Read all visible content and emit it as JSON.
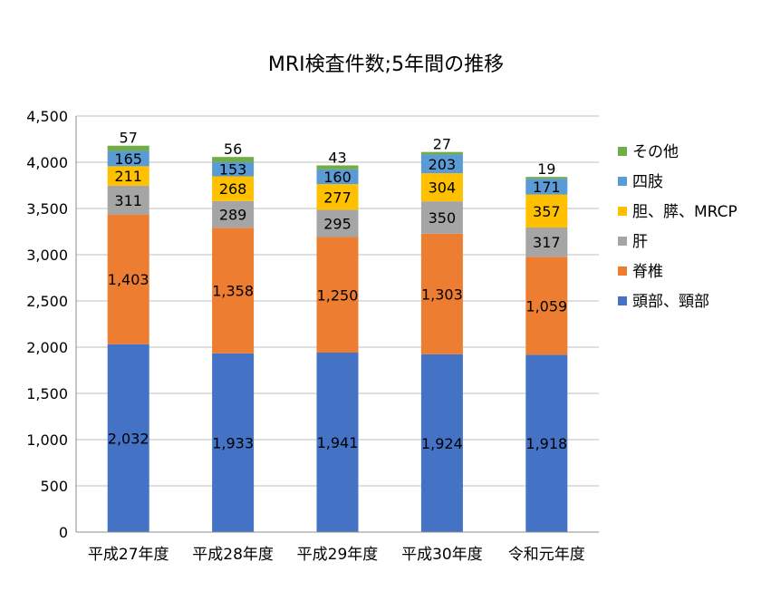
{
  "chart_data": {
    "type": "bar",
    "stacked": true,
    "title": "MRI検査件数;5年間の推移",
    "categories": [
      "平成27年度",
      "平成28年度",
      "平成29年度",
      "平成30年度",
      "令和元年度"
    ],
    "series": [
      {
        "name": "頭部、頸部",
        "color": "#4472C4",
        "values": [
          2032,
          1933,
          1941,
          1924,
          1918
        ],
        "labels": [
          "2,032",
          "1,933",
          "1,941",
          "1,924",
          "1,918"
        ]
      },
      {
        "name": "脊椎",
        "color": "#ED7D31",
        "values": [
          1403,
          1358,
          1250,
          1303,
          1059
        ],
        "labels": [
          "1,403",
          "1,358",
          "1,250",
          "1,303",
          "1,059"
        ]
      },
      {
        "name": "肝",
        "color": "#A5A5A5",
        "values": [
          311,
          289,
          295,
          350,
          317
        ],
        "labels": [
          "311",
          "289",
          "295",
          "350",
          "317"
        ]
      },
      {
        "name": "胆、膵、MRCP",
        "color": "#FFC000",
        "values": [
          211,
          268,
          277,
          304,
          357
        ],
        "labels": [
          "211",
          "268",
          "277",
          "304",
          "357"
        ]
      },
      {
        "name": "四肢",
        "color": "#5B9BD5",
        "values": [
          165,
          153,
          160,
          203,
          171
        ],
        "labels": [
          "165",
          "153",
          "160",
          "203",
          "171"
        ]
      },
      {
        "name": "その他",
        "color": "#70AD47",
        "values": [
          57,
          56,
          43,
          27,
          19
        ],
        "labels": [
          "57",
          "56",
          "43",
          "27",
          "19"
        ]
      }
    ],
    "ylim": [
      0,
      4500
    ],
    "yticks": [
      "0",
      "500",
      "1,000",
      "1,500",
      "2,000",
      "2,500",
      "3,000",
      "3,500",
      "4,000",
      "4,500"
    ],
    "xlabel": "",
    "ylabel": "",
    "grid": true,
    "legend_position": "right"
  }
}
